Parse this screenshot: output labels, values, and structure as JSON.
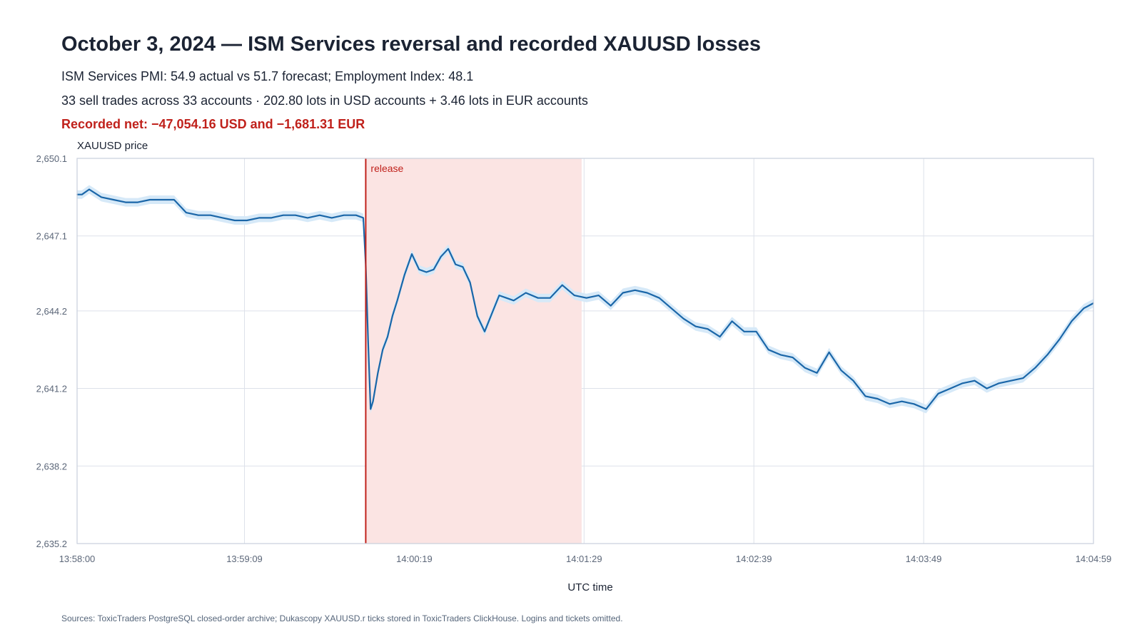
{
  "header": {
    "title": "October 3, 2024 — ISM Services reversal and recorded XAUUSD losses",
    "subtitle_pmi": "ISM Services PMI: 54.9 actual vs 51.7 forecast; Employment Index: 48.1",
    "subtitle_trades": "33 sell trades across 33 accounts · 202.80 lots in USD accounts + 3.46 lots in EUR accounts",
    "net_result": "Recorded net: −47,054.16 USD and −1,681.31 EUR"
  },
  "footer": {
    "sources": "Sources: ToxicTraders PostgreSQL closed-order archive; Dukascopy XAUUSD.r ticks stored in ToxicTraders ClickHouse. Logins and tickets omitted."
  },
  "colors": {
    "line": "#1a66a8",
    "band": "#d6e9f8",
    "shade": "#fbe4e3",
    "release": "#c0211b",
    "grid": "#dde1ea",
    "frame": "#c9cfdc",
    "net_text": "#c0211b"
  },
  "chart_data": {
    "type": "line",
    "title": "October 3, 2024 — ISM Services reversal and recorded XAUUSD losses",
    "xlabel": "UTC time",
    "ylabel": "XAUUSD price",
    "x_range": [
      "13:58:00",
      "14:04:59"
    ],
    "x_ticks": [
      "13:58:00",
      "13:59:09",
      "14:00:19",
      "14:01:29",
      "14:02:39",
      "14:03:49",
      "14:04:59"
    ],
    "y_range": [
      2635.2,
      2650.1
    ],
    "y_ticks": [
      2635.2,
      2638.2,
      2641.2,
      2644.2,
      2647.1,
      2650.1
    ],
    "y_tick_labels": [
      "2,635.2",
      "2,638.2",
      "2,641.2",
      "2,644.2",
      "2,647.1",
      "2,650.1"
    ],
    "grid": true,
    "release": {
      "label": "release",
      "time": "13:59:59"
    },
    "shaded_window": {
      "start": "13:59:59",
      "end": "14:01:28"
    },
    "series": [
      {
        "name": "XAUUSD price",
        "band": "tick range",
        "x": [
          "13:58:00",
          "13:58:02",
          "13:58:05",
          "13:58:10",
          "13:58:15",
          "13:58:20",
          "13:58:25",
          "13:58:30",
          "13:58:35",
          "13:58:40",
          "13:58:45",
          "13:58:50",
          "13:58:55",
          "13:59:00",
          "13:59:05",
          "13:59:10",
          "13:59:15",
          "13:59:20",
          "13:59:25",
          "13:59:30",
          "13:59:35",
          "13:59:40",
          "13:59:45",
          "13:59:50",
          "13:59:55",
          "13:59:58",
          "13:59:59",
          "14:00:00",
          "14:00:01",
          "14:00:02",
          "14:00:04",
          "14:00:06",
          "14:00:08",
          "14:00:10",
          "14:00:12",
          "14:00:15",
          "14:00:18",
          "14:00:21",
          "14:00:24",
          "14:00:27",
          "14:00:30",
          "14:00:33",
          "14:00:36",
          "14:00:39",
          "14:00:42",
          "14:00:45",
          "14:00:48",
          "14:00:51",
          "14:00:54",
          "14:00:57",
          "14:01:00",
          "14:01:05",
          "14:01:10",
          "14:01:15",
          "14:01:20",
          "14:01:25",
          "14:01:30",
          "14:01:35",
          "14:01:40",
          "14:01:45",
          "14:01:50",
          "14:01:55",
          "14:02:00",
          "14:02:05",
          "14:02:10",
          "14:02:15",
          "14:02:20",
          "14:02:25",
          "14:02:30",
          "14:02:35",
          "14:02:40",
          "14:02:45",
          "14:02:50",
          "14:02:55",
          "14:03:00",
          "14:03:05",
          "14:03:10",
          "14:03:15",
          "14:03:20",
          "14:03:25",
          "14:03:30",
          "14:03:35",
          "14:03:40",
          "14:03:45",
          "14:03:50",
          "14:03:55",
          "14:04:00",
          "14:04:05",
          "14:04:10",
          "14:04:15",
          "14:04:20",
          "14:04:25",
          "14:04:30",
          "14:04:35",
          "14:04:40",
          "14:04:45",
          "14:04:50",
          "14:04:55",
          "14:04:59"
        ],
        "values": [
          2648.7,
          2648.7,
          2648.9,
          2648.6,
          2648.5,
          2648.4,
          2648.4,
          2648.5,
          2648.5,
          2648.5,
          2648.0,
          2647.9,
          2647.9,
          2647.8,
          2647.7,
          2647.7,
          2647.8,
          2647.8,
          2647.9,
          2647.9,
          2647.8,
          2647.9,
          2647.8,
          2647.9,
          2647.9,
          2647.8,
          2646.0,
          2643.0,
          2640.4,
          2640.7,
          2641.8,
          2642.7,
          2643.2,
          2644.0,
          2644.6,
          2645.6,
          2646.4,
          2645.8,
          2645.7,
          2645.8,
          2646.3,
          2646.6,
          2646.0,
          2645.9,
          2645.3,
          2644.0,
          2643.4,
          2644.1,
          2644.8,
          2644.7,
          2644.6,
          2644.9,
          2644.7,
          2644.7,
          2645.2,
          2644.8,
          2644.7,
          2644.8,
          2644.4,
          2644.9,
          2645.0,
          2644.9,
          2644.7,
          2644.3,
          2643.9,
          2643.6,
          2643.5,
          2643.2,
          2643.8,
          2643.4,
          2643.4,
          2642.7,
          2642.5,
          2642.4,
          2642.0,
          2641.8,
          2642.6,
          2641.9,
          2641.5,
          2640.9,
          2640.8,
          2640.6,
          2640.7,
          2640.6,
          2640.4,
          2641.0,
          2641.2,
          2641.4,
          2641.5,
          2641.2,
          2641.4,
          2641.5,
          2641.6,
          2642.0,
          2642.5,
          2643.1,
          2643.8,
          2644.3,
          2644.5
        ]
      }
    ]
  }
}
